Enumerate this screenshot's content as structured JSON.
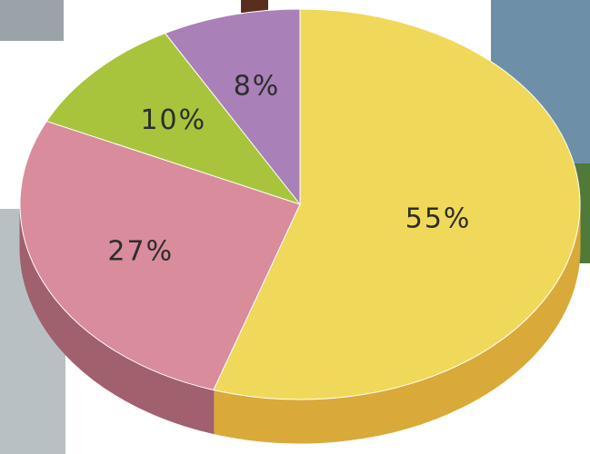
{
  "chart_data": {
    "type": "pie",
    "categories": [
      null,
      null,
      null,
      null
    ],
    "values": [
      55,
      27,
      10,
      8
    ],
    "value_labels": [
      "55%",
      "27%",
      "10%",
      "8%"
    ],
    "colors": [
      "#f0d95a",
      "#d98c9c",
      "#a8c43c",
      "#aa80b8"
    ],
    "side_colors": [
      "#d9a93a",
      "#a0606e",
      "#7d9428",
      "#7d5a8a"
    ]
  }
}
